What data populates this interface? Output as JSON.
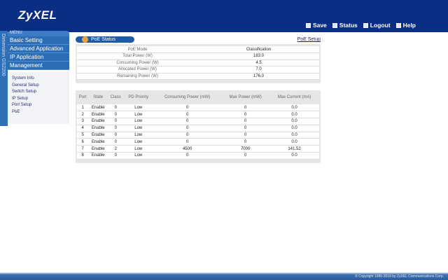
{
  "header": {
    "logo": "ZyXEL",
    "links": [
      {
        "label": "Save",
        "icon": "save-icon"
      },
      {
        "label": "Status",
        "icon": "status-icon"
      },
      {
        "label": "Logout",
        "icon": "logout-icon"
      },
      {
        "label": "Help",
        "icon": "help-icon"
      }
    ]
  },
  "side_label": "Dimension GS2200",
  "menu": {
    "title": "MENU",
    "items": [
      "Basic Setting",
      "Advanced Application",
      "IP Application",
      "Management"
    ],
    "subitems": [
      "System Info",
      "General Setup",
      "Switch Setup",
      "IP Setup",
      "Port Setup",
      "PoE"
    ]
  },
  "main": {
    "title": "PoE Status",
    "setup_link": "PoE Setup",
    "summary": [
      [
        "PoE Mode",
        "Classification"
      ],
      [
        "Total Power (W)",
        "183.0"
      ],
      [
        "Consuming Power (W)",
        "4.5"
      ],
      [
        "Allocated Power (W)",
        "7.0"
      ],
      [
        "Remaining Power (W)",
        "176.0"
      ]
    ],
    "columns": [
      "Port",
      "State",
      "Class",
      "PD Priority",
      "Consuming Power (mW)",
      "Max Power (mW)",
      "Max Current (mA)"
    ],
    "rows": [
      [
        "1",
        "Enable",
        "0",
        "Low",
        "0",
        "0",
        "0.0"
      ],
      [
        "2",
        "Enable",
        "0",
        "Low",
        "0",
        "0",
        "0.0"
      ],
      [
        "3",
        "Enable",
        "0",
        "Low",
        "0",
        "0",
        "0.0"
      ],
      [
        "4",
        "Enable",
        "0",
        "Low",
        "0",
        "0",
        "0.0"
      ],
      [
        "5",
        "Enable",
        "0",
        "Low",
        "0",
        "0",
        "0.0"
      ],
      [
        "6",
        "Enable",
        "0",
        "Low",
        "0",
        "0",
        "0.0"
      ],
      [
        "7",
        "Enable",
        "2",
        "Low",
        "4500",
        "7000",
        "141.52"
      ],
      [
        "8",
        "Enable",
        "0",
        "Low",
        "0",
        "0",
        "0.0"
      ]
    ]
  },
  "footer": {
    "copyright": "© Copyright 1995-2018 by ZyXEL Communications Corp."
  }
}
